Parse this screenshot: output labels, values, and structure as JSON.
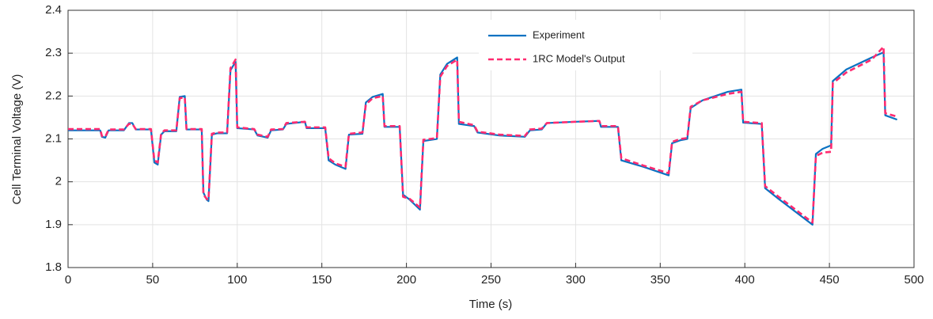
{
  "chart_data": {
    "type": "line",
    "x_label": "Time (s)",
    "y_label": "Cell Terminal Voltage (V)",
    "x": [
      0,
      19,
      20,
      22,
      24,
      33,
      36,
      38,
      40,
      49,
      51,
      53,
      55,
      57,
      64,
      66,
      69,
      70,
      79,
      80,
      82,
      83,
      85,
      88,
      94,
      96,
      99,
      100,
      110,
      112,
      118,
      120,
      127,
      129,
      140,
      141,
      152,
      154,
      158,
      164,
      166,
      174,
      176,
      180,
      186,
      187,
      196,
      198,
      202,
      208,
      210,
      218,
      220,
      224,
      230,
      231,
      240,
      242,
      255,
      270,
      273,
      280,
      283,
      300,
      314,
      315,
      325,
      327,
      340,
      355,
      357,
      362,
      366,
      368,
      375,
      390,
      398,
      399,
      410,
      412,
      420,
      435,
      440,
      442,
      446,
      451,
      452,
      460,
      475,
      482,
      483,
      490
    ],
    "series": [
      {
        "name": "Experiment",
        "color": "#0a72c2",
        "linestyle": "solid",
        "values": [
          2.12,
          2.12,
          2.105,
          2.103,
          2.12,
          2.12,
          2.137,
          2.137,
          2.122,
          2.122,
          2.045,
          2.04,
          2.11,
          2.118,
          2.118,
          2.198,
          2.2,
          2.122,
          2.122,
          1.975,
          1.958,
          1.955,
          2.11,
          2.113,
          2.113,
          2.26,
          2.28,
          2.125,
          2.122,
          2.108,
          2.103,
          2.12,
          2.122,
          2.135,
          2.14,
          2.125,
          2.125,
          2.05,
          2.04,
          2.03,
          2.11,
          2.112,
          2.185,
          2.198,
          2.205,
          2.128,
          2.128,
          1.97,
          1.958,
          1.935,
          2.095,
          2.1,
          2.25,
          2.275,
          2.29,
          2.135,
          2.13,
          2.115,
          2.108,
          2.105,
          2.12,
          2.122,
          2.137,
          2.14,
          2.142,
          2.128,
          2.128,
          2.05,
          2.035,
          2.015,
          2.09,
          2.097,
          2.1,
          2.172,
          2.19,
          2.21,
          2.215,
          2.138,
          2.135,
          1.985,
          1.96,
          1.915,
          1.9,
          2.065,
          2.077,
          2.085,
          2.235,
          2.262,
          2.29,
          2.302,
          2.155,
          2.145
        ]
      },
      {
        "name": "1RC Model's Output",
        "color": "#ff2b70",
        "linestyle": "dashed",
        "values": [
          2.123,
          2.123,
          2.107,
          2.105,
          2.122,
          2.122,
          2.135,
          2.135,
          2.123,
          2.123,
          2.05,
          2.045,
          2.112,
          2.12,
          2.12,
          2.195,
          2.197,
          2.123,
          2.123,
          1.97,
          1.96,
          1.958,
          2.112,
          2.115,
          2.115,
          2.265,
          2.285,
          2.127,
          2.123,
          2.11,
          2.105,
          2.122,
          2.123,
          2.137,
          2.14,
          2.127,
          2.127,
          2.055,
          2.043,
          2.035,
          2.112,
          2.115,
          2.18,
          2.195,
          2.2,
          2.13,
          2.13,
          1.965,
          1.96,
          1.94,
          2.098,
          2.102,
          2.245,
          2.27,
          2.285,
          2.14,
          2.132,
          2.117,
          2.11,
          2.107,
          2.122,
          2.124,
          2.137,
          2.14,
          2.142,
          2.13,
          2.13,
          2.055,
          2.038,
          2.02,
          2.093,
          2.1,
          2.102,
          2.175,
          2.19,
          2.205,
          2.21,
          2.14,
          2.137,
          1.99,
          1.965,
          1.92,
          1.905,
          2.06,
          2.068,
          2.07,
          2.23,
          2.255,
          2.285,
          2.315,
          2.16,
          2.152
        ]
      }
    ],
    "xlim": [
      0,
      500
    ],
    "xticks": [
      0,
      50,
      100,
      150,
      200,
      250,
      300,
      350,
      400,
      450,
      500
    ],
    "ylim": [
      1.8,
      2.4
    ],
    "yticks": [
      1.8,
      1.9,
      2,
      2.1,
      2.2,
      2.3,
      2.4
    ],
    "grid": true,
    "legend": "upper center"
  }
}
